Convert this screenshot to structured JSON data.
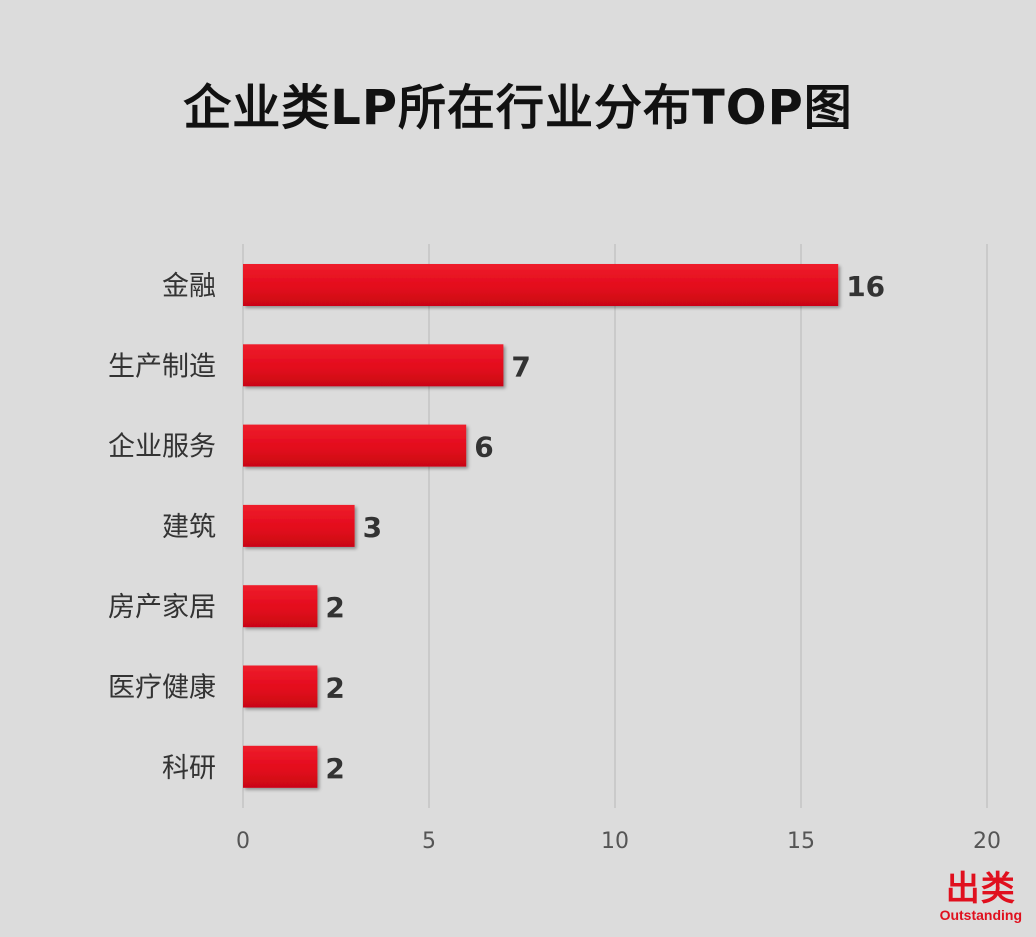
{
  "chart_data": {
    "type": "bar",
    "orientation": "horizontal",
    "title": "企业类LP所在行业分布TOP图",
    "categories": [
      "金融",
      "生产制造",
      "企业服务",
      "建筑",
      "房产家居",
      "医疗健康",
      "科研"
    ],
    "values": [
      16,
      7,
      6,
      3,
      2,
      2,
      2
    ],
    "xlim": [
      0,
      20
    ],
    "xticks": [
      0,
      5,
      10,
      15,
      20
    ],
    "grid": "vertical",
    "legend": "none",
    "bar_color": "#e3091c",
    "data_labels": true
  },
  "brand": {
    "main": "出类",
    "sub": "Outstanding"
  },
  "colors": {
    "background": "#dcdcdc",
    "bar": "#e3091c",
    "grid": "#c4c4c4",
    "brand": "#e0101e"
  }
}
